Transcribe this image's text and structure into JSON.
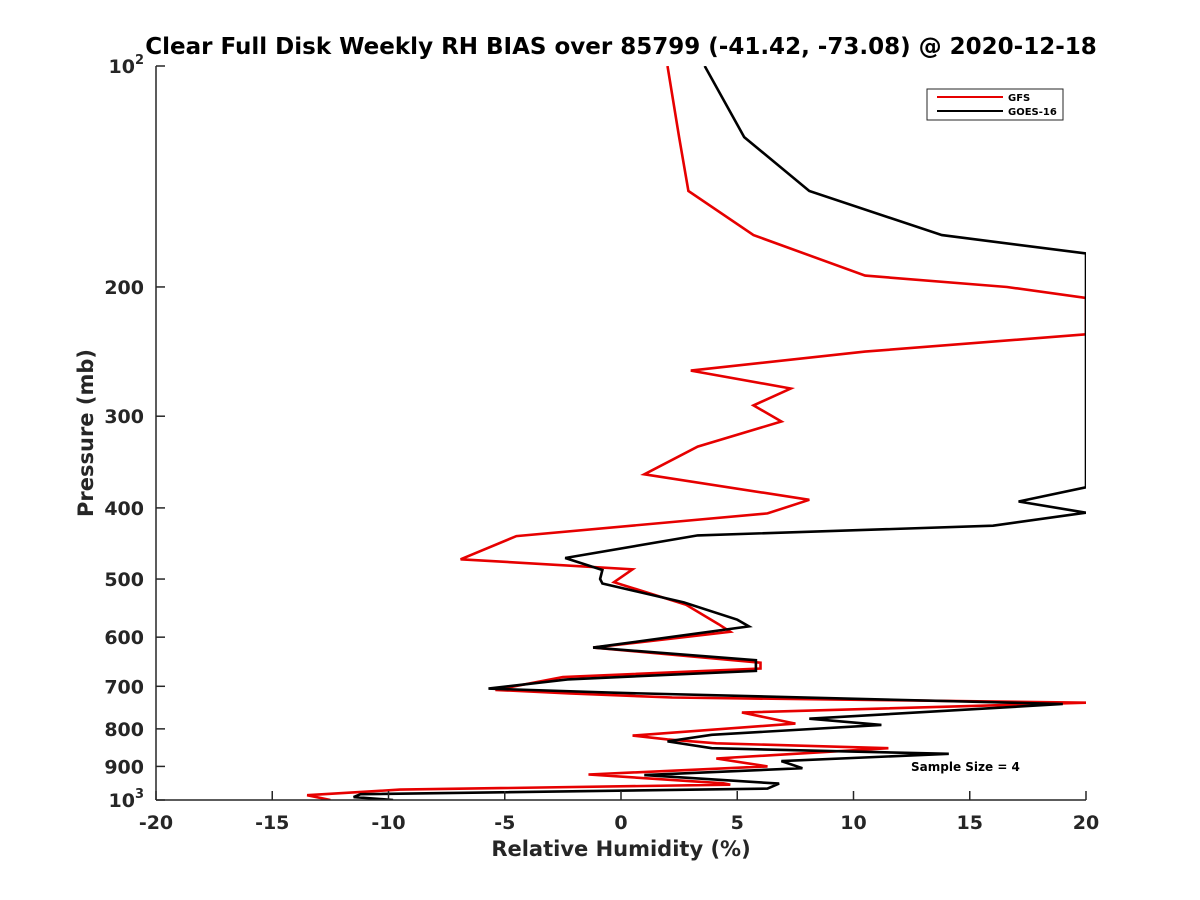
{
  "chart_data": {
    "type": "line",
    "title": "Clear Full Disk Weekly RH BIAS over 85799 (-41.42, -73.08) @ 2020-12-18",
    "xlabel": "Relative Humidity (%)",
    "ylabel": "Pressure (mb)",
    "xlim": [
      -20,
      20
    ],
    "ylim": [
      100,
      1000
    ],
    "yscale": "log",
    "y_reversed": true,
    "grid": false,
    "legend_position": "top-right",
    "x_tick_labels": [
      "-20",
      "-15",
      "-10",
      "-5",
      "0",
      "5",
      "10",
      "15",
      "20"
    ],
    "y_tick_labels": [
      {
        "value": 100,
        "base": "10",
        "exp": "2"
      },
      {
        "value": 200,
        "base": "200",
        "exp": ""
      },
      {
        "value": 300,
        "base": "300",
        "exp": ""
      },
      {
        "value": 400,
        "base": "400",
        "exp": ""
      },
      {
        "value": 500,
        "base": "500",
        "exp": ""
      },
      {
        "value": 600,
        "base": "600",
        "exp": ""
      },
      {
        "value": 700,
        "base": "700",
        "exp": ""
      },
      {
        "value": 800,
        "base": "800",
        "exp": ""
      },
      {
        "value": 900,
        "base": "900",
        "exp": ""
      },
      {
        "value": 1000,
        "base": "10",
        "exp": "3"
      }
    ],
    "annotation": "Sample Size = 4",
    "series": [
      {
        "name": "GFS",
        "color": "#e60000",
        "points": [
          [
            2.0,
            100
          ],
          [
            2.5,
            125
          ],
          [
            2.9,
            148
          ],
          [
            5.7,
            170
          ],
          [
            10.5,
            193
          ],
          [
            16.6,
            200
          ],
          [
            20.0,
            207
          ],
          [
            20.0,
            232
          ],
          [
            10.5,
            245
          ],
          [
            3.0,
            260
          ],
          [
            7.3,
            275
          ],
          [
            5.7,
            290
          ],
          [
            6.9,
            305
          ],
          [
            3.3,
            330
          ],
          [
            1.0,
            360
          ],
          [
            8.1,
            390
          ],
          [
            6.3,
            407
          ],
          [
            -4.5,
            437
          ],
          [
            -6.9,
            470
          ],
          [
            0.5,
            485
          ],
          [
            -0.3,
            505
          ],
          [
            2.8,
            542
          ],
          [
            4.2,
            576
          ],
          [
            4.7,
            590
          ],
          [
            -1.2,
            620
          ],
          [
            6.0,
            650
          ],
          [
            6.0,
            662
          ],
          [
            -2.5,
            680
          ],
          [
            -5.4,
            708
          ],
          [
            -2.2,
            716
          ],
          [
            2.2,
            725
          ],
          [
            20.0,
            737
          ],
          [
            5.2,
            760
          ],
          [
            7.5,
            787
          ],
          [
            0.5,
            817
          ],
          [
            2.0,
            827
          ],
          [
            4.1,
            837
          ],
          [
            11.5,
            850
          ],
          [
            4.1,
            878
          ],
          [
            6.3,
            900
          ],
          [
            -1.4,
            923
          ],
          [
            4.4,
            949
          ],
          [
            4.7,
            953
          ],
          [
            -9.5,
            968
          ],
          [
            -13.5,
            985
          ],
          [
            -12.5,
            1000
          ]
        ]
      },
      {
        "name": "GOES-16",
        "color": "#000000",
        "points": [
          [
            3.6,
            100
          ],
          [
            5.3,
            125
          ],
          [
            8.1,
            148
          ],
          [
            13.8,
            170
          ],
          [
            20.0,
            180
          ],
          [
            20.0,
            375
          ],
          [
            17.1,
            392
          ],
          [
            20.0,
            406
          ],
          [
            16.0,
            423
          ],
          [
            3.3,
            436
          ],
          [
            -2.4,
            468
          ],
          [
            -0.8,
            486
          ],
          [
            -0.9,
            500
          ],
          [
            -0.8,
            507
          ],
          [
            2.7,
            538
          ],
          [
            5.0,
            568
          ],
          [
            5.5,
            580
          ],
          [
            -1.2,
            620
          ],
          [
            5.8,
            645
          ],
          [
            5.8,
            667
          ],
          [
            -2.3,
            685
          ],
          [
            -5.7,
            705
          ],
          [
            -0.5,
            714
          ],
          [
            19.0,
            740
          ],
          [
            8.1,
            775
          ],
          [
            11.2,
            790
          ],
          [
            3.9,
            815
          ],
          [
            2.0,
            832
          ],
          [
            3.9,
            850
          ],
          [
            14.1,
            865
          ],
          [
            6.9,
            885
          ],
          [
            7.8,
            905
          ],
          [
            1.0,
            925
          ],
          [
            6.8,
            950
          ],
          [
            6.3,
            965
          ],
          [
            -11.2,
            982
          ],
          [
            -11.5,
            991
          ],
          [
            -9.8,
            1000
          ]
        ]
      }
    ]
  }
}
